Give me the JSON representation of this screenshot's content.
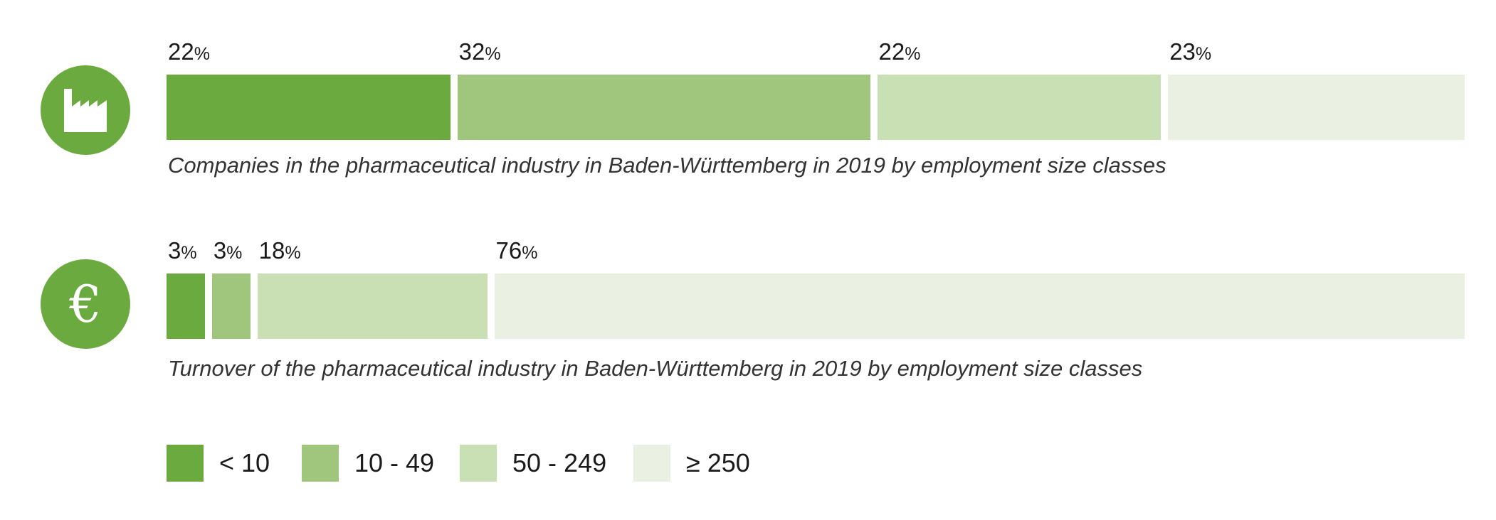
{
  "colors": {
    "size_lt10": "#6aaa3e",
    "size_10_49": "#a0c57d",
    "size_50_249": "#c9dfb4",
    "size_ge250": "#eaf1e2",
    "icon_background": "#6aaa3e",
    "icon_foreground": "#ffffff"
  },
  "icons": [
    "factory-icon",
    "euro-icon"
  ],
  "chart_data": [
    {
      "type": "bar",
      "orientation": "horizontal-stacked-100",
      "title": "Companies in the pharmaceutical industry in Baden-Württemberg in 2019 by employment size classes",
      "icon": "factory-icon",
      "unit": "%",
      "categories": [
        "< 10",
        "10 - 49",
        "50 - 249",
        "≥ 250"
      ],
      "values": [
        22,
        32,
        22,
        23
      ],
      "labels": [
        "22",
        "32",
        "22",
        "23"
      ]
    },
    {
      "type": "bar",
      "orientation": "horizontal-stacked-100",
      "title": "Turnover of the pharmaceutical industry in Baden-Württemberg in 2019 by employment size classes",
      "icon": "euro-icon",
      "unit": "%",
      "categories": [
        "< 10",
        "10 - 49",
        "50 - 249",
        "≥ 250"
      ],
      "values": [
        3,
        3,
        18,
        76
      ],
      "labels": [
        "3",
        "3",
        "18",
        "76"
      ]
    }
  ],
  "legend": [
    {
      "label": "< 10",
      "color": "#6aaa3e"
    },
    {
      "label": "10 - 49",
      "color": "#a0c57d"
    },
    {
      "label": "50 - 249",
      "color": "#c9dfb4"
    },
    {
      "label": "≥ 250",
      "color": "#eaf1e2"
    }
  ]
}
